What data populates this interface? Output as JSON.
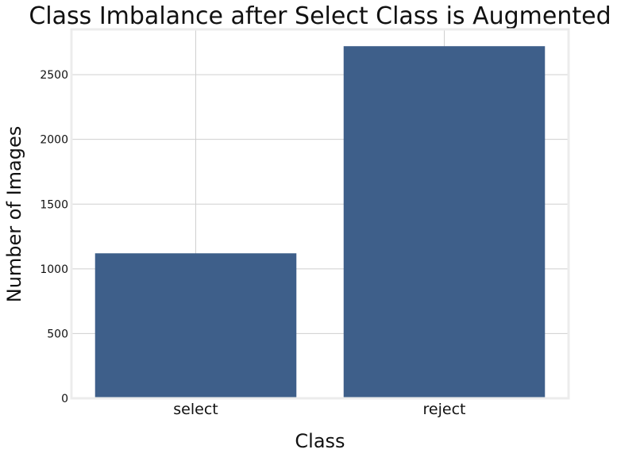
{
  "chart_data": {
    "type": "bar",
    "title": "Class Imbalance after Select Class is Augmented",
    "xlabel": "Class",
    "ylabel": "Number of Images",
    "categories": [
      "select",
      "reject"
    ],
    "values": [
      1120,
      2720
    ],
    "ylim": [
      0,
      2850
    ],
    "yticks": [
      0,
      500,
      1000,
      1500,
      2000,
      2500
    ],
    "grid": true,
    "legend": "none",
    "bar_color": "#3e5f8a"
  }
}
